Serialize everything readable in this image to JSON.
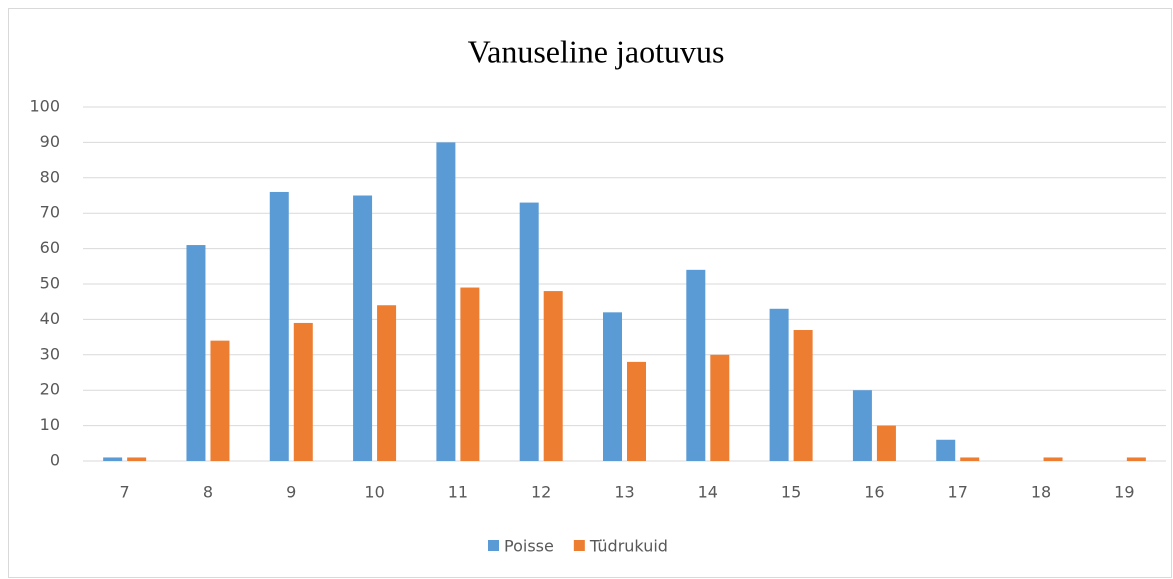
{
  "chart_data": {
    "type": "bar",
    "title": "Vanuseline jaotuvus",
    "categories": [
      "7",
      "8",
      "9",
      "10",
      "11",
      "12",
      "13",
      "14",
      "15",
      "16",
      "17",
      "18",
      "19"
    ],
    "series": [
      {
        "name": "Poisse",
        "color": "#5b9bd5",
        "values": [
          1,
          61,
          76,
          75,
          90,
          73,
          42,
          54,
          43,
          20,
          6,
          0,
          0
        ]
      },
      {
        "name": "Tüdrukuid",
        "color": "#ed7d31",
        "values": [
          1,
          34,
          39,
          44,
          49,
          48,
          28,
          30,
          37,
          10,
          1,
          1,
          1
        ]
      }
    ],
    "ylim": [
      0,
      100
    ],
    "yticks": [
      0,
      10,
      20,
      30,
      40,
      50,
      60,
      70,
      80,
      90,
      100
    ],
    "grid": true,
    "legend": "bottom"
  }
}
